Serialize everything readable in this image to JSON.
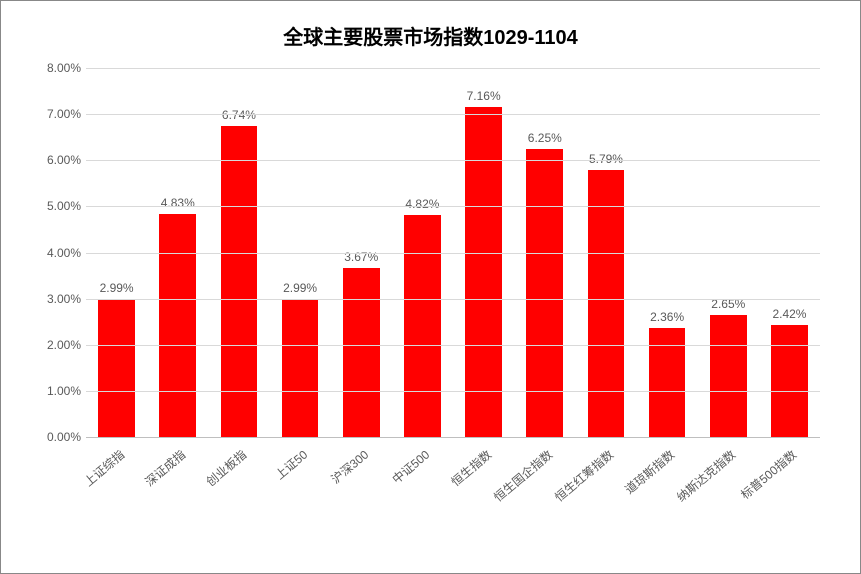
{
  "chart": {
    "type": "bar",
    "title": "全球主要股票市场指数1029-1104",
    "title_fontsize": 20,
    "title_fontweight": "bold",
    "title_color": "#000000",
    "categories": [
      "上证综指",
      "深证成指",
      "创业板指",
      "上证50",
      "沪深300",
      "中证500",
      "恒生指数",
      "恒生国企指数",
      "恒生红筹指数",
      "道琼斯指数",
      "纳斯达克指数",
      "标普500指数"
    ],
    "values": [
      2.99,
      4.83,
      6.74,
      2.99,
      3.67,
      4.82,
      7.16,
      6.25,
      5.79,
      2.36,
      2.65,
      2.42
    ],
    "value_labels": [
      "2.99%",
      "4.83%",
      "6.74%",
      "2.99%",
      "3.67%",
      "4.82%",
      "7.16%",
      "6.25%",
      "5.79%",
      "2.36%",
      "2.65%",
      "2.42%"
    ],
    "bar_color": "#ff0000",
    "ylim": [
      0,
      8
    ],
    "ytick_step": 1,
    "ytick_labels": [
      "0.00%",
      "1.00%",
      "2.00%",
      "3.00%",
      "4.00%",
      "5.00%",
      "6.00%",
      "7.00%",
      "8.00%"
    ],
    "ytick_values": [
      0,
      1,
      2,
      3,
      4,
      5,
      6,
      7,
      8
    ],
    "grid_color": "#d9d9d9",
    "axis_color": "#bfbfbf",
    "background_color": "#ffffff",
    "label_fontsize": 12,
    "label_color": "#595959",
    "xlabel_rotation": -40,
    "bar_width": 0.6
  }
}
